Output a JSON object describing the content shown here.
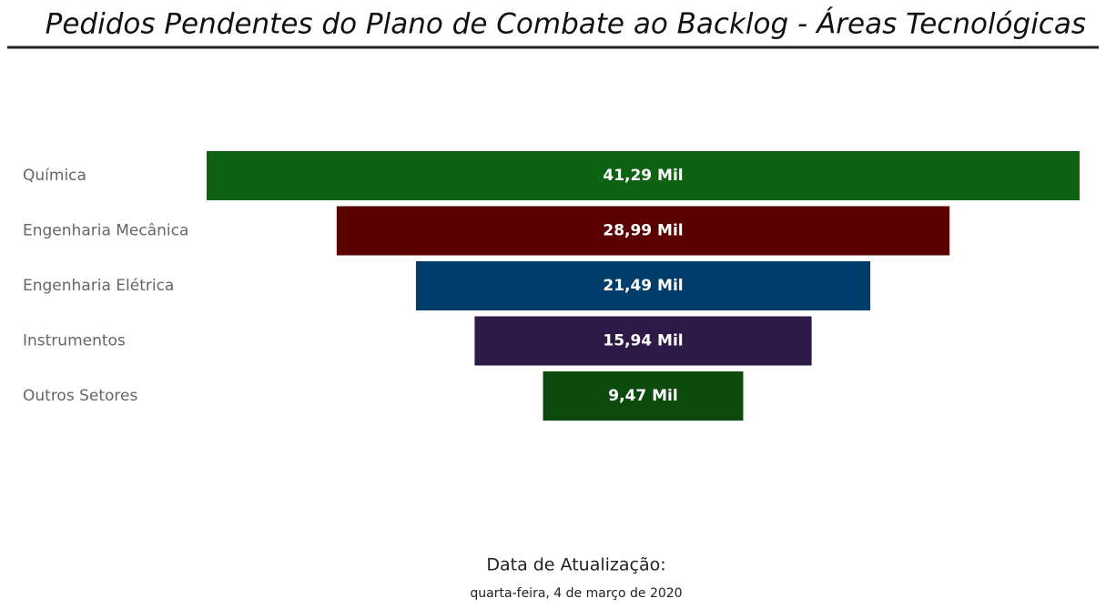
{
  "chart_data": {
    "type": "funnel",
    "title": "Pedidos Pendentes do Plano de Combate ao Backlog - Áreas Tecnológicas",
    "categories": [
      "Química",
      "Engenharia Mecânica",
      "Engenharia Elétrica",
      "Instrumentos",
      "Outros Setores"
    ],
    "values": [
      41.29,
      28.99,
      21.49,
      15.94,
      9.47
    ],
    "value_labels": [
      "41,29 Mil",
      "28,99 Mil",
      "21,49 Mil",
      "15,94 Mil",
      "9,47 Mil"
    ],
    "colors": [
      "#0e6312",
      "#5a0000",
      "#003d6b",
      "#2e1a47",
      "#0d4a0e"
    ]
  },
  "footer": {
    "label": "Data de Atualização:",
    "date": "quarta-feira, 4 de março de 2020"
  }
}
